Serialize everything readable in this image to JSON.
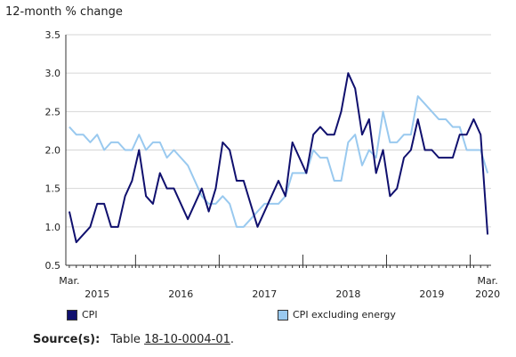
{
  "chart_data": {
    "type": "line",
    "ylabel": "12-month % change",
    "ylim": [
      0.5,
      3.5
    ],
    "yticks": [
      0.5,
      1.0,
      1.5,
      2.0,
      2.5,
      3.0,
      3.5
    ],
    "x_range": [
      "2015-03",
      "2020-03"
    ],
    "x_tick_labels": [
      {
        "month": "2015-03",
        "label": "Mar."
      },
      {
        "month": "2015-07",
        "label": "2015"
      },
      {
        "month": "2016-07",
        "label": "2016"
      },
      {
        "month": "2017-07",
        "label": "2017"
      },
      {
        "month": "2018-07",
        "label": "2018"
      },
      {
        "month": "2019-07",
        "label": "2019"
      },
      {
        "month": "2020-03",
        "label": "Mar."
      },
      {
        "month": "2020-03",
        "label": "2020"
      }
    ],
    "grid": "horizontal",
    "series": [
      {
        "name": "CPI",
        "color": "#10106e",
        "values": [
          1.2,
          0.8,
          0.9,
          1.0,
          1.3,
          1.3,
          1.0,
          1.0,
          1.4,
          1.6,
          2.0,
          1.4,
          1.3,
          1.7,
          1.5,
          1.5,
          1.3,
          1.1,
          1.3,
          1.5,
          1.2,
          1.5,
          2.1,
          2.0,
          1.6,
          1.6,
          1.3,
          1.0,
          1.2,
          1.4,
          1.6,
          1.4,
          2.1,
          1.9,
          1.7,
          2.2,
          2.3,
          2.2,
          2.2,
          2.5,
          3.0,
          2.8,
          2.2,
          2.4,
          1.7,
          2.0,
          1.4,
          1.5,
          1.9,
          2.0,
          2.4,
          2.0,
          2.0,
          1.9,
          1.9,
          1.9,
          2.2,
          2.2,
          2.4,
          2.2,
          0.9
        ]
      },
      {
        "name": "CPI excluding energy",
        "color": "#99c9ef",
        "values": [
          2.3,
          2.2,
          2.2,
          2.1,
          2.2,
          2.0,
          2.1,
          2.1,
          2.0,
          2.0,
          2.2,
          2.0,
          2.1,
          2.1,
          1.9,
          2.0,
          1.9,
          1.8,
          1.6,
          1.4,
          1.3,
          1.3,
          1.4,
          1.3,
          1.0,
          1.0,
          1.1,
          1.2,
          1.3,
          1.3,
          1.3,
          1.4,
          1.7,
          1.7,
          1.7,
          2.0,
          1.9,
          1.9,
          1.6,
          1.6,
          2.1,
          2.2,
          1.8,
          2.0,
          1.9,
          2.5,
          2.1,
          2.1,
          2.2,
          2.2,
          2.7,
          2.6,
          2.5,
          2.4,
          2.4,
          2.3,
          2.3,
          2.0,
          2.0,
          2.0,
          1.7
        ]
      }
    ]
  },
  "source": {
    "label": "Source(s):",
    "prefix": "Table",
    "link_text": "18-10-0004-01",
    "suffix": "."
  }
}
